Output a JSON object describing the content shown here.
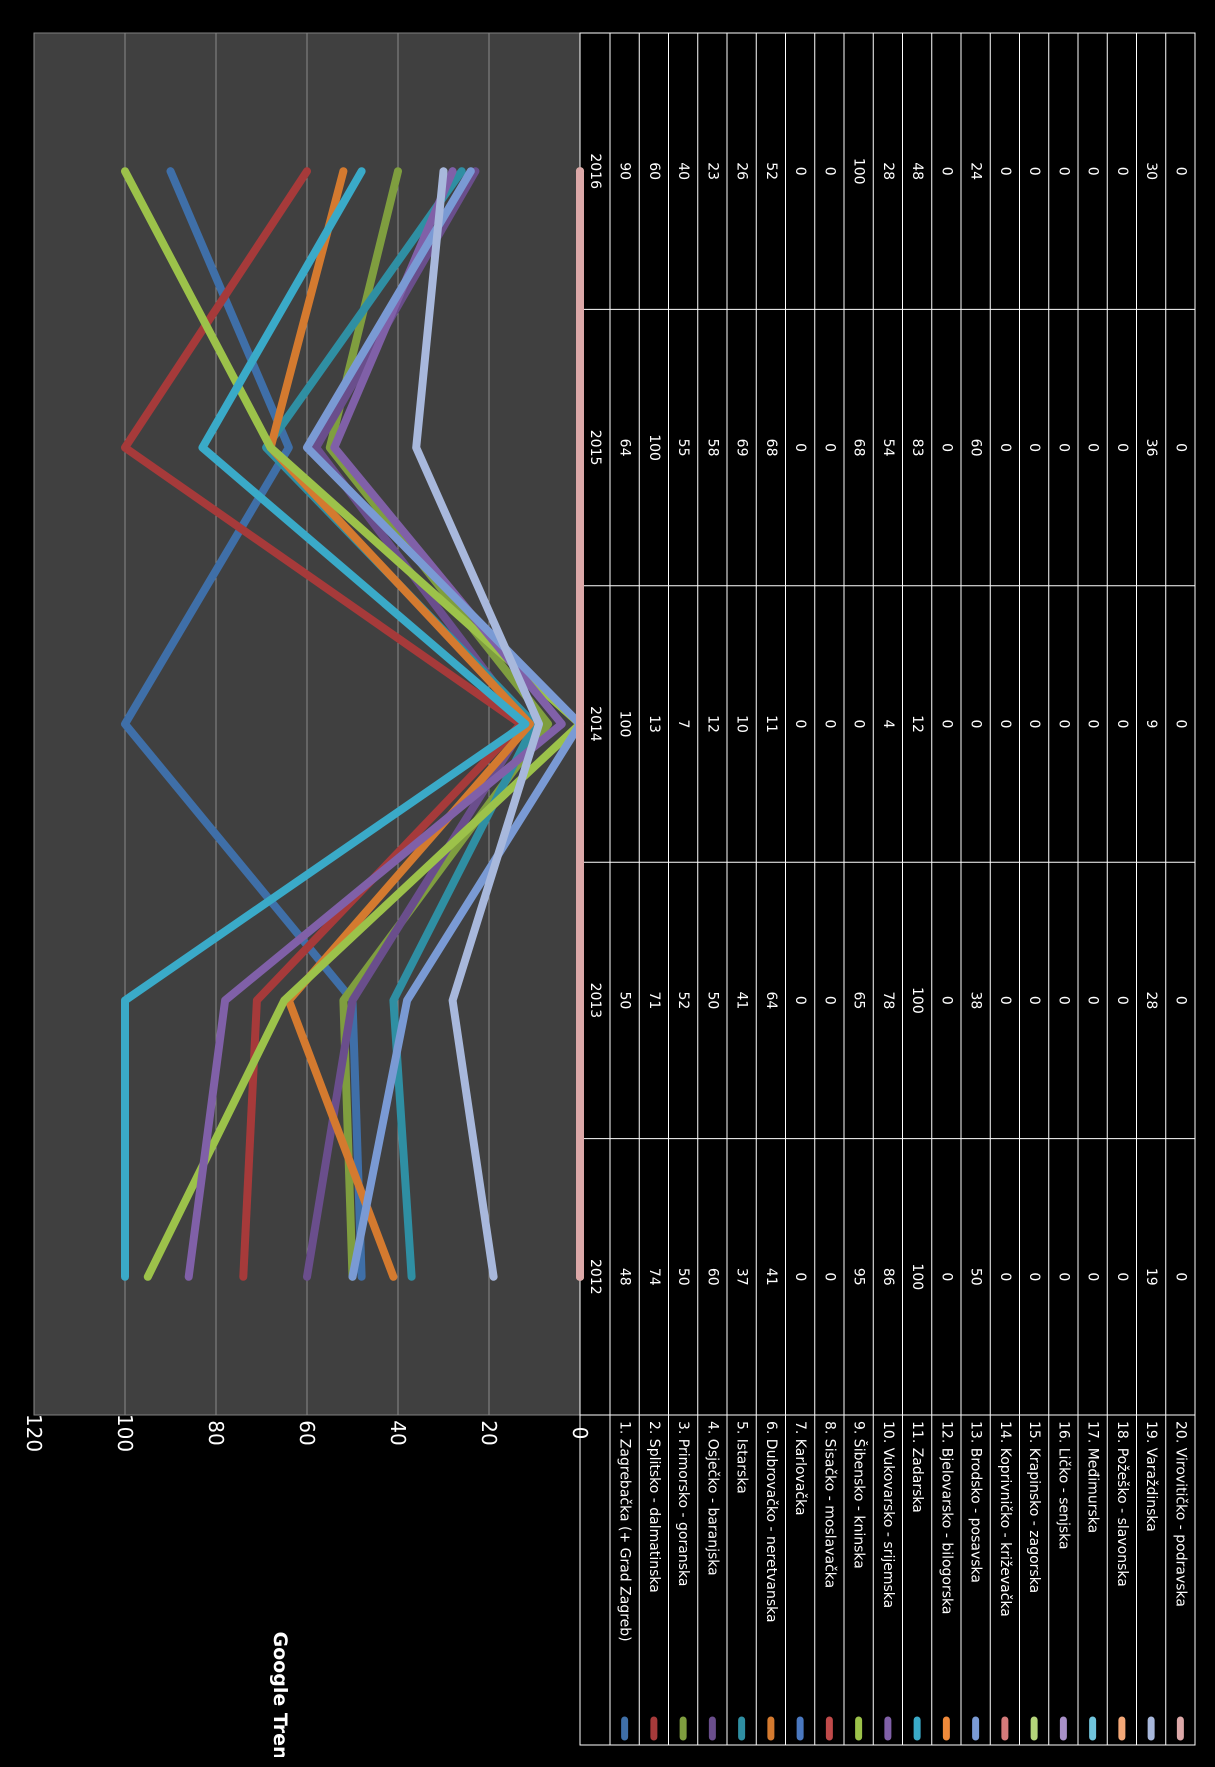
{
  "chart_data": {
    "type": "line",
    "ylabel": "Google Trend index",
    "ylim": [
      0,
      120
    ],
    "yticks": [
      "0",
      "20",
      "40",
      "60",
      "80",
      "100",
      "120"
    ],
    "categories": [
      "2012",
      "2013",
      "2014",
      "2015",
      "2016"
    ],
    "grid": true,
    "legend": "data-table",
    "background": "#404040",
    "series": [
      {
        "name": "1.  Zagrebačka    (+ Grad Zagreb)",
        "color": "#3f6fa8",
        "values": [
          48,
          50,
          100,
          64,
          90
        ]
      },
      {
        "name": "2.  Splitsko - dalmatinska",
        "color": "#a63a3a",
        "values": [
          74,
          71,
          13,
          100,
          60
        ]
      },
      {
        "name": "3.  Primorsko - goranska",
        "color": "#7f9e3f",
        "values": [
          50,
          52,
          7,
          55,
          40
        ]
      },
      {
        "name": "4.  Osječko - baranjska",
        "color": "#6a4e8c",
        "values": [
          60,
          50,
          12,
          58,
          23
        ]
      },
      {
        "name": "5.  Istarska",
        "color": "#2f8fa3",
        "values": [
          37,
          41,
          10,
          69,
          26
        ]
      },
      {
        "name": "6.  Dubrovačko - neretvanska",
        "color": "#d47a2f",
        "values": [
          41,
          64,
          11,
          68,
          52
        ]
      },
      {
        "name": "7.  Karlovačka",
        "color": "#4a78c0",
        "values": [
          0,
          0,
          0,
          0,
          0
        ]
      },
      {
        "name": "8.  Sisačko - moslavačka",
        "color": "#c04a4a",
        "values": [
          0,
          0,
          0,
          0,
          0
        ]
      },
      {
        "name": "9.  Šibensko - kninska",
        "color": "#9cc24a",
        "values": [
          95,
          65,
          0,
          68,
          100
        ]
      },
      {
        "name": "10. Vukovarsko - srijemska",
        "color": "#8060a8",
        "values": [
          86,
          78,
          4,
          54,
          28
        ]
      },
      {
        "name": "11. Zadarska",
        "color": "#3aaac8",
        "values": [
          100,
          100,
          12,
          83,
          48
        ]
      },
      {
        "name": "12. Bjelovarsko - bilogorska",
        "color": "#f08a3a",
        "values": [
          0,
          0,
          0,
          0,
          0
        ]
      },
      {
        "name": "13. Brodsko - posavska",
        "color": "#7a9ad4",
        "values": [
          50,
          38,
          0,
          60,
          24
        ]
      },
      {
        "name": "14. Koprivničko - križevačka",
        "color": "#d47a7a",
        "values": [
          0,
          0,
          0,
          0,
          0
        ]
      },
      {
        "name": "15. Krapinsko - zagorska",
        "color": "#b4d47a",
        "values": [
          0,
          0,
          0,
          0,
          0
        ]
      },
      {
        "name": "16. Ličko - senjska",
        "color": "#a890c8",
        "values": [
          0,
          0,
          0,
          0,
          0
        ]
      },
      {
        "name": "17. Međimurska",
        "color": "#70c4dc",
        "values": [
          0,
          0,
          0,
          0,
          0
        ]
      },
      {
        "name": "18. Požeško - slavonska",
        "color": "#f4a878",
        "values": [
          0,
          0,
          0,
          0,
          0
        ]
      },
      {
        "name": "19. Varaždinska",
        "color": "#a8b8dc",
        "values": [
          19,
          28,
          9,
          36,
          30
        ]
      },
      {
        "name": "20. Virovitičko - podravska",
        "color": "#dca8a8",
        "values": [
          0,
          0,
          0,
          0,
          0
        ]
      }
    ]
  }
}
